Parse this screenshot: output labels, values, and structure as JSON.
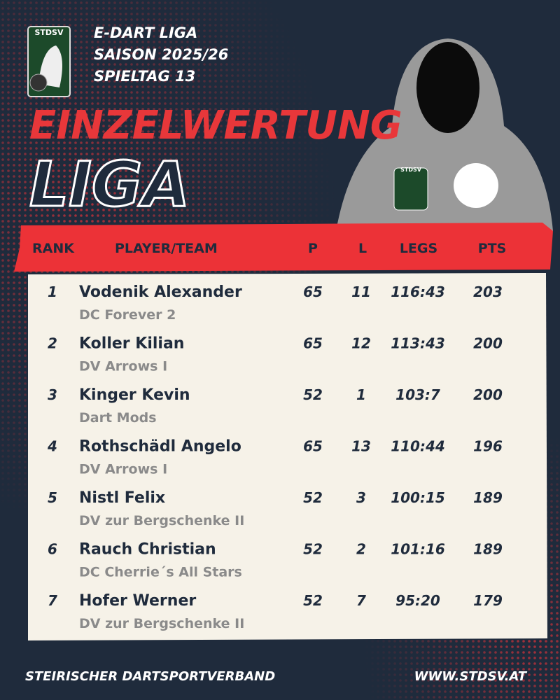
{
  "header": {
    "logo": "STDSV",
    "lines": [
      "E-DART LIGA",
      "SAISON 2025/26",
      "SPIELTAG 13"
    ]
  },
  "title": "EINZELWERTUNG",
  "subtitle": "LIGA",
  "table": {
    "columns": [
      "RANK",
      "PLAYER/TEAM",
      "P",
      "L",
      "LEGS",
      "PTS"
    ],
    "rows": [
      [
        "1",
        "Vodenik Alexander",
        "DC Forever 2",
        "65",
        "11",
        "116:43",
        "203"
      ],
      [
        "2",
        "Koller Kilian",
        "DV Arrows I",
        "65",
        "12",
        "113:43",
        "200"
      ],
      [
        "3",
        "Kinger Kevin",
        "Dart Mods",
        "52",
        "1",
        "103:7",
        "200"
      ],
      [
        "4",
        "Rothschädl Angelo",
        "DV Arrows I",
        "65",
        "13",
        "110:44",
        "196"
      ],
      [
        "5",
        "Nistl Felix",
        "DV zur Bergschenke II",
        "52",
        "3",
        "100:15",
        "189"
      ],
      [
        "6",
        "Rauch Christian",
        "DC Cherrie´s All Stars",
        "52",
        "2",
        "101:16",
        "189"
      ],
      [
        "7",
        "Hofer Werner",
        "DV zur Bergschenke II",
        "52",
        "7",
        "95:20",
        "179"
      ]
    ]
  },
  "footer": {
    "left": "STEIRISCHER DARTSPORTVERBAND",
    "right": "WWW.STDSV.AT"
  }
}
